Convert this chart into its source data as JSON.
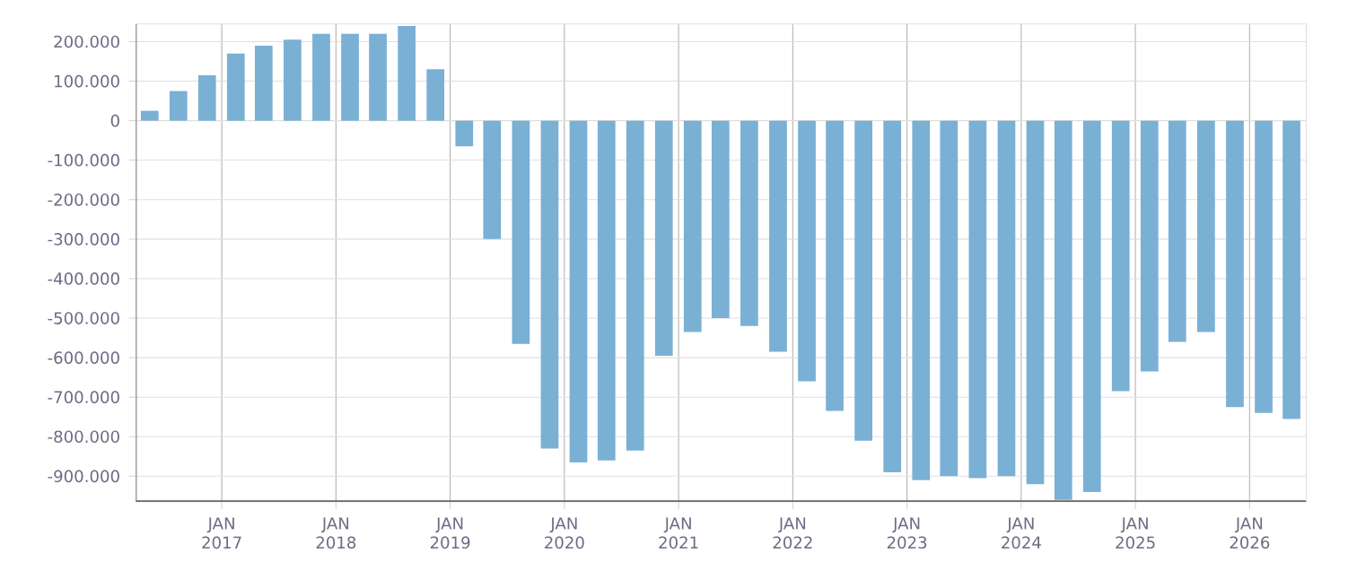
{
  "chart_data": {
    "type": "bar",
    "color": "#7ab0d4",
    "grid": true,
    "x": [
      "2016-05-15",
      "2016-08-15",
      "2016-11-15",
      "2017-02-15",
      "2017-05-15",
      "2017-08-15",
      "2017-11-15",
      "2018-02-15",
      "2018-05-15",
      "2018-08-15",
      "2018-11-15",
      "2019-02-15",
      "2019-05-15",
      "2019-08-15",
      "2019-11-15",
      "2020-02-15",
      "2020-05-15",
      "2020-08-15",
      "2020-11-15",
      "2021-02-15",
      "2021-05-15",
      "2021-08-15",
      "2021-11-15",
      "2022-02-15",
      "2022-05-15",
      "2022-08-15",
      "2022-11-15",
      "2023-02-15",
      "2023-05-15",
      "2023-08-15",
      "2023-11-15",
      "2024-02-15",
      "2024-05-15",
      "2024-08-15",
      "2024-11-15",
      "2025-02-15",
      "2025-05-15",
      "2025-08-15",
      "2025-11-15",
      "2026-02-15",
      "2026-05-15"
    ],
    "values": [
      25000,
      75000,
      115000,
      170000,
      190000,
      205000,
      220000,
      220000,
      220000,
      240000,
      130000,
      -65000,
      -300000,
      -565000,
      -830000,
      -865000,
      -860000,
      -835000,
      -595000,
      -535000,
      -500000,
      -520000,
      -585000,
      -660000,
      -735000,
      -810000,
      -890000,
      -910000,
      -900000,
      -905000,
      -900000,
      -920000,
      -960000,
      -940000,
      -685000,
      -635000,
      -560000,
      -535000,
      -725000,
      -740000,
      -755000
    ],
    "xlim": [
      "2016-04-01",
      "2026-07-01"
    ],
    "xticks": [
      {
        "value": "2017-01-01",
        "label": "JAN 2017"
      },
      {
        "value": "2018-01-01",
        "label": "JAN 2018"
      },
      {
        "value": "2019-01-01",
        "label": "JAN 2019"
      },
      {
        "value": "2020-01-01",
        "label": "JAN 2020"
      },
      {
        "value": "2021-01-01",
        "label": "JAN 2021"
      },
      {
        "value": "2022-01-01",
        "label": "JAN 2022"
      },
      {
        "value": "2023-01-01",
        "label": "JAN 2023"
      },
      {
        "value": "2024-01-01",
        "label": "JAN 2024"
      },
      {
        "value": "2025-01-01",
        "label": "JAN 2025"
      },
      {
        "value": "2026-01-01",
        "label": "JAN 2026"
      }
    ],
    "ylim": [
      -965000,
      245000
    ],
    "yticks": [
      {
        "value": 200000,
        "label": "200.000"
      },
      {
        "value": 100000,
        "label": "100.000"
      },
      0,
      {
        "value": -100000,
        "label": "-100.000"
      },
      {
        "value": -200000,
        "label": "-200.000"
      },
      {
        "value": -300000,
        "label": "-300.000"
      },
      {
        "value": -400000,
        "label": "-400.000"
      },
      {
        "value": -500000,
        "label": "-500.000"
      },
      {
        "value": -600000,
        "label": "-600.000"
      },
      {
        "value": -700000,
        "label": "-700.000"
      },
      {
        "value": -800000,
        "label": "-800.000"
      },
      {
        "value": -900000,
        "label": "-900.000"
      }
    ]
  }
}
